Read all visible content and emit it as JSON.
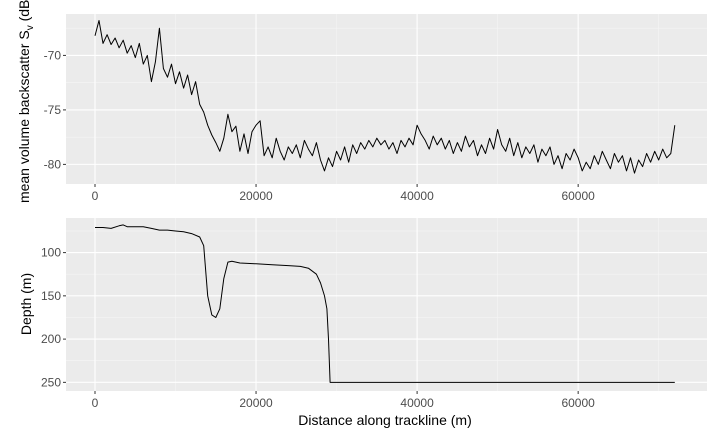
{
  "colors": {
    "panel_bg": "#ebebeb",
    "grid_major": "#ffffff",
    "grid_minor": "#f5f5f5",
    "line": "#000000",
    "tick_text": "#4d4d4d"
  },
  "chart_data": [
    {
      "type": "line",
      "title": "",
      "xlabel": "",
      "ylabel": "mean volume backscatter S",
      "ylabel_sub": "v",
      "ylabel_unit": " (dB)",
      "xlim": [
        -3600,
        76000
      ],
      "ylim": [
        -81.8,
        -66.2
      ],
      "y_reversed": false,
      "x_ticks": [
        0,
        20000,
        40000,
        60000
      ],
      "x_tick_labels": [
        "0",
        "20000",
        "40000",
        "60000"
      ],
      "y_ticks": [
        -70,
        -75,
        -80
      ],
      "y_tick_labels": [
        "-70",
        "-75",
        "-80"
      ],
      "grid": true,
      "series": [
        {
          "x": [
            0,
            500,
            1000,
            1500,
            2000,
            2500,
            3000,
            3500,
            4000,
            4500,
            5000,
            5500,
            6000,
            6500,
            7000,
            7500,
            8000,
            8500,
            9000,
            9500,
            10000,
            10500,
            11000,
            11500,
            12000,
            12500,
            13000,
            13500,
            14000,
            14500,
            15000,
            15500,
            16000,
            16500,
            17000,
            17500,
            18000,
            18500,
            19000,
            19500,
            20000,
            20500,
            21000,
            21500,
            22000,
            22500,
            23000,
            23500,
            24000,
            24500,
            25000,
            25500,
            26000,
            26500,
            27000,
            27500,
            28000,
            28500,
            29000,
            29500,
            30000,
            30500,
            31000,
            31500,
            32000,
            32500,
            33000,
            33500,
            34000,
            34500,
            35000,
            35500,
            36000,
            36500,
            37000,
            37500,
            38000,
            38500,
            39000,
            39500,
            40000,
            40500,
            41000,
            41500,
            42000,
            42500,
            43000,
            43500,
            44000,
            44500,
            45000,
            45500,
            46000,
            46500,
            47000,
            47500,
            48000,
            48500,
            49000,
            49500,
            50000,
            50500,
            51000,
            51500,
            52000,
            52500,
            53000,
            53500,
            54000,
            54500,
            55000,
            55500,
            56000,
            56500,
            57000,
            57500,
            58000,
            58500,
            59000,
            59500,
            60000,
            60500,
            61000,
            61500,
            62000,
            62500,
            63000,
            63500,
            64000,
            64500,
            65000,
            65500,
            66000,
            66500,
            67000,
            67500,
            68000,
            68500,
            69000,
            69500,
            70000,
            70500,
            71000,
            71500,
            72000
          ],
          "y": [
            -68.2,
            -66.8,
            -68.9,
            -68.1,
            -69.0,
            -68.4,
            -69.3,
            -68.6,
            -69.8,
            -69.1,
            -70.2,
            -68.9,
            -70.8,
            -70.0,
            -72.4,
            -70.6,
            -67.5,
            -71.2,
            -72.0,
            -70.8,
            -72.6,
            -71.5,
            -73.0,
            -71.8,
            -73.6,
            -72.4,
            -74.5,
            -75.2,
            -76.4,
            -77.3,
            -78.0,
            -78.8,
            -77.6,
            -75.4,
            -77.0,
            -76.5,
            -78.8,
            -77.2,
            -79.0,
            -77.0,
            -76.4,
            -76.0,
            -79.2,
            -78.4,
            -79.4,
            -77.6,
            -78.8,
            -79.6,
            -78.4,
            -79.0,
            -78.2,
            -79.4,
            -77.8,
            -78.6,
            -79.2,
            -78.0,
            -79.6,
            -80.6,
            -79.4,
            -80.2,
            -78.8,
            -79.6,
            -78.4,
            -79.8,
            -78.2,
            -79.0,
            -78.0,
            -78.6,
            -77.8,
            -78.4,
            -77.6,
            -78.2,
            -77.8,
            -78.6,
            -78.0,
            -79.0,
            -77.8,
            -78.4,
            -77.6,
            -78.2,
            -76.4,
            -77.2,
            -77.8,
            -78.6,
            -77.4,
            -78.2,
            -77.6,
            -78.6,
            -77.8,
            -79.0,
            -78.0,
            -78.8,
            -77.4,
            -78.4,
            -77.8,
            -79.2,
            -78.2,
            -79.0,
            -77.6,
            -78.6,
            -76.8,
            -78.2,
            -78.8,
            -77.6,
            -79.2,
            -78.0,
            -79.4,
            -78.4,
            -79.0,
            -78.2,
            -79.8,
            -78.6,
            -79.2,
            -78.4,
            -80.0,
            -79.2,
            -80.4,
            -79.0,
            -79.6,
            -78.6,
            -79.4,
            -80.6,
            -79.8,
            -80.4,
            -79.2,
            -80.0,
            -78.8,
            -79.6,
            -80.4,
            -79.0,
            -79.8,
            -79.2,
            -80.6,
            -79.4,
            -80.8,
            -79.6,
            -80.2,
            -79.0,
            -79.8,
            -78.8,
            -79.6,
            -78.6,
            -79.4,
            -79.0,
            -76.4
          ]
        }
      ]
    },
    {
      "type": "line",
      "title": "",
      "xlabel": "Distance along trackline (m)",
      "ylabel": "Depth (m)",
      "xlim": [
        -3600,
        76000
      ],
      "ylim": [
        60,
        260
      ],
      "y_reversed": true,
      "x_ticks": [
        0,
        20000,
        40000,
        60000
      ],
      "x_tick_labels": [
        "0",
        "20000",
        "40000",
        "60000"
      ],
      "y_ticks": [
        100,
        150,
        200,
        250
      ],
      "y_tick_labels": [
        "100",
        "150",
        "200",
        "250"
      ],
      "grid": true,
      "series": [
        {
          "x": [
            0,
            1000,
            2000,
            3000,
            3500,
            4000,
            5000,
            6000,
            7000,
            8000,
            9000,
            10000,
            11000,
            12000,
            13000,
            13500,
            14000,
            14500,
            15000,
            15500,
            16000,
            16500,
            17000,
            18000,
            20000,
            22000,
            24000,
            25500,
            26500,
            27500,
            28000,
            28500,
            28800,
            29000,
            29200,
            30000,
            40000,
            50000,
            60000,
            72000
          ],
          "y": [
            71,
            71,
            72,
            69,
            68,
            70,
            70,
            70,
            72,
            74,
            74,
            75,
            76,
            78,
            82,
            92,
            150,
            172,
            175,
            165,
            130,
            111,
            110,
            112,
            113,
            114,
            115,
            116,
            118,
            125,
            135,
            150,
            165,
            200,
            250,
            250,
            250,
            250,
            250,
            250
          ]
        }
      ]
    }
  ]
}
